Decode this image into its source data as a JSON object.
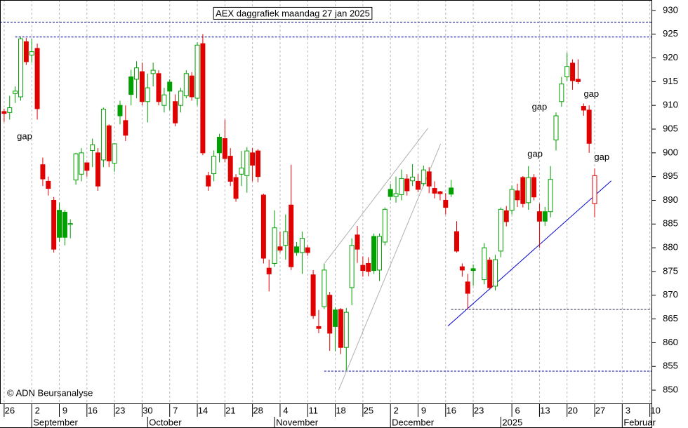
{
  "chart_data": {
    "type": "candlestick",
    "title": "AEX daggrafiek maandag 27 jan 2025",
    "copyright": "© ADN Beursanalyse",
    "up_color": "#00a000",
    "down_color": "#e00000",
    "grid": "x",
    "ylim": [
      847.2,
      932.2
    ],
    "yticks": [
      850,
      855,
      860,
      865,
      870,
      875,
      880,
      885,
      890,
      895,
      900,
      905,
      910,
      915,
      920,
      925,
      930
    ],
    "xlim": [
      -0.75,
      117.3
    ],
    "xticks": [
      {
        "value": 0,
        "label": "26"
      },
      {
        "value": 5,
        "label": "2"
      },
      {
        "value": 10,
        "label": "9"
      },
      {
        "value": 15,
        "label": "16"
      },
      {
        "value": 20,
        "label": "23"
      },
      {
        "value": 25,
        "label": "30"
      },
      {
        "value": 30,
        "label": "7"
      },
      {
        "value": 35,
        "label": "14"
      },
      {
        "value": 40,
        "label": "21"
      },
      {
        "value": 45,
        "label": "28"
      },
      {
        "value": 50,
        "label": "4"
      },
      {
        "value": 55,
        "label": "11"
      },
      {
        "value": 60,
        "label": "18"
      },
      {
        "value": 65,
        "label": "25"
      },
      {
        "value": 70,
        "label": "2"
      },
      {
        "value": 75,
        "label": "9"
      },
      {
        "value": 80,
        "label": "16"
      },
      {
        "value": 85,
        "label": "23"
      },
      {
        "value": 92,
        "label": "6"
      },
      {
        "value": 97,
        "label": "13"
      },
      {
        "value": 102,
        "label": "20"
      },
      {
        "value": 107,
        "label": "27"
      },
      {
        "value": 112,
        "label": "3"
      },
      {
        "value": 117,
        "label": "10"
      }
    ],
    "month_ticks": [
      {
        "value": 5,
        "label": "September"
      },
      {
        "value": 26,
        "label": "October"
      },
      {
        "value": 49,
        "label": "November"
      },
      {
        "value": 70,
        "label": "December"
      },
      {
        "value": 90,
        "label": "2025"
      },
      {
        "value": 112,
        "label": "Februar"
      }
    ],
    "x": [
      0,
      1,
      2,
      3,
      4,
      5,
      6,
      7,
      8,
      9,
      10,
      11,
      12,
      13,
      14,
      15,
      16,
      17,
      18,
      19,
      20,
      21,
      22,
      23,
      24,
      25,
      26,
      27,
      28,
      29,
      30,
      31,
      32,
      33,
      34,
      35,
      36,
      37,
      38,
      39,
      40,
      41,
      42,
      43,
      44,
      45,
      46,
      47,
      48,
      49,
      50,
      51,
      52,
      53,
      54,
      55,
      56,
      57,
      58,
      59,
      60,
      61,
      62,
      63,
      64,
      65,
      66,
      67,
      68,
      69,
      70,
      71,
      72,
      73,
      74,
      75,
      76,
      77,
      78,
      79,
      80,
      81,
      82,
      83,
      84,
      85,
      87,
      88,
      89,
      90,
      91,
      92,
      93,
      94,
      95,
      96,
      97,
      98,
      99,
      100,
      101,
      102,
      103,
      104,
      105,
      106,
      107
    ],
    "open": [
      908.7,
      908.5,
      912.5,
      911.8,
      923.4,
      920.6,
      922,
      897.5,
      894,
      890,
      887.9,
      887.5,
      884.9,
      894.3,
      895.5,
      897.9,
      900.5,
      900,
      898.5,
      905.7,
      897.8,
      910,
      906.8,
      916,
      915.5,
      917.1,
      910.8,
      916.7,
      916.7,
      910,
      914.9,
      910.8,
      910,
      912,
      916.2,
      911.5,
      923,
      895.2,
      895.6,
      903.3,
      903,
      899.3,
      894.8,
      895.5,
      895.2,
      900,
      900.4,
      891.1,
      875.7,
      876.7,
      880.2,
      880.5,
      889,
      880.2,
      879,
      880,
      874.3,
      863.4,
      867.6,
      870,
      866.9,
      867,
      859,
      871.6,
      882.7,
      876.3,
      876.7,
      882.4,
      875.3,
      881.2,
      892.3,
      890.8,
      891.2,
      894.5,
      894.1,
      894,
      893.5,
      896,
      892.5,
      891.8,
      890,
      892.6,
      883.4,
      876,
      872.8,
      875.6,
      873.3,
      877.4,
      871.9,
      879.3,
      887.8,
      887.9,
      892,
      894.8,
      889.5,
      894.8,
      887.6,
      887.6,
      887.6,
      902.7,
      910.8,
      916,
      918.9,
      915.5,
      909.8,
      909,
      889.3
    ],
    "high": [
      909.3,
      912,
      914,
      924.5,
      924.2,
      924,
      923,
      899,
      895,
      890.7,
      889.5,
      888,
      886,
      900,
      901,
      898,
      903,
      901,
      909.5,
      906,
      902,
      911,
      910,
      917.5,
      919.3,
      919,
      916.7,
      919,
      917.4,
      913.7,
      915.5,
      912.3,
      913.7,
      917.4,
      917,
      923.3,
      925,
      896,
      900.5,
      904,
      907,
      901,
      895.5,
      900.4,
      901.2,
      901,
      900.8,
      891.4,
      877.5,
      887.9,
      883.4,
      887,
      897.5,
      881.2,
      883.4,
      880.5,
      875.3,
      866.9,
      876.7,
      870.7,
      867.5,
      867.3,
      867.3,
      882,
      884.6,
      878.2,
      878,
      883,
      883,
      888.5,
      893.5,
      895,
      896.5,
      895.5,
      897.6,
      895.5,
      897.3,
      897,
      894,
      892,
      891.5,
      894.3,
      885.6,
      876.7,
      874.5,
      876.5,
      881,
      878,
      878.5,
      888.5,
      888.8,
      893.1,
      893.5,
      895.1,
      897.2,
      895.5,
      889.3,
      888.6,
      897.2,
      908.5,
      916,
      921.1,
      919.7,
      919.7,
      910.4,
      910,
      896.7
    ],
    "low": [
      906.5,
      907,
      910.5,
      911,
      918.5,
      919,
      907,
      893,
      891,
      879,
      881.2,
      880.5,
      882,
      893.3,
      894,
      895,
      897,
      892,
      897,
      897,
      896,
      906,
      902.5,
      910,
      911.5,
      910,
      906.4,
      914,
      910,
      908.5,
      909,
      905.6,
      908.5,
      911.5,
      911,
      910,
      899.5,
      892,
      894,
      898,
      898,
      893,
      889.7,
      893,
      891.6,
      894,
      893.8,
      876.7,
      870.8,
      876,
      879,
      877.5,
      875.3,
      878.3,
      874.5,
      878.3,
      865,
      862,
      867.1,
      858.3,
      858.2,
      857.6,
      854.1,
      867.9,
      876.8,
      873.9,
      874,
      874.5,
      873,
      880.5,
      890,
      889.5,
      890,
      891,
      893,
      891.7,
      893,
      891.5,
      890.4,
      890,
      887,
      890.7,
      879,
      873.9,
      867,
      872,
      872.3,
      871.2,
      871,
      878,
      884.5,
      887,
      888.6,
      888.5,
      888,
      890,
      880,
      884.6,
      886.4,
      900.5,
      909.7,
      915.2,
      913.3,
      914.5,
      907.8,
      900,
      886.4
    ],
    "close": [
      908.3,
      909.5,
      913,
      924,
      919.2,
      921.3,
      909.3,
      894.5,
      892.5,
      879.7,
      882.2,
      882.2,
      885.1,
      899.8,
      900,
      896.3,
      901.7,
      893,
      909.2,
      898.3,
      901.9,
      907.8,
      903.7,
      912.3,
      917.9,
      910.8,
      913.7,
      917.4,
      910.8,
      912.2,
      913,
      906.3,
      913,
      916.7,
      911.8,
      922.7,
      900,
      893,
      899.3,
      900,
      898.8,
      894,
      890.4,
      896.8,
      900.4,
      897.4,
      895,
      877.8,
      874.5,
      884.2,
      879.5,
      883.4,
      876,
      879,
      882,
      879,
      865.7,
      863,
      875.3,
      862,
      863.4,
      859,
      866.4,
      880.5,
      879.7,
      875.2,
      875,
      875.2,
      882.4,
      888.1,
      890.8,
      891.4,
      894.6,
      892,
      894.9,
      892.3,
      896.4,
      893,
      891.5,
      891.4,
      888.5,
      891.3,
      879.3,
      875.3,
      870.4,
      875.2,
      880,
      871.6,
      877.5,
      888.1,
      885.5,
      892.3,
      890.1,
      889.3,
      894.8,
      890.7,
      885.6,
      885.6,
      894.4,
      907.8,
      914.5,
      918.2,
      915.2,
      915,
      909,
      902,
      895.2
    ],
    "hlines": [
      {
        "y": 927.5,
        "from": -0.75,
        "color": "#000080"
      },
      {
        "y": 924.4,
        "from": 2,
        "color": "#0000a0"
      },
      {
        "y": 867,
        "from": 81,
        "color": "#202040"
      },
      {
        "y": 854,
        "from": 58,
        "color": "#0000a0"
      }
    ],
    "trendlines": [
      {
        "x": [
          80.4,
          110
        ],
        "y": [
          863.5,
          894.1
        ],
        "color": "#0000cc"
      },
      {
        "x": [
          58.1,
          76.8
        ],
        "y": [
          876.8,
          905.2
        ],
        "color": "#b0b0b0"
      },
      {
        "x": [
          60.6,
          79.1
        ],
        "y": [
          850,
          901.9
        ],
        "color": "#b0b0b0"
      }
    ],
    "annotations": [
      {
        "text": "gap",
        "x": 3.7,
        "y": 903.4,
        "color": "#a0a0a0"
      },
      {
        "text": "gap",
        "x": 97,
        "y": 909.6,
        "color": "#000000"
      },
      {
        "text": "gap",
        "x": 96.2,
        "y": 899.7,
        "color": "#000000"
      },
      {
        "text": "gap",
        "x": 106.4,
        "y": 912.3,
        "color": "#000000"
      },
      {
        "text": "gap",
        "x": 108.3,
        "y": 899,
        "color": "#000000"
      }
    ]
  }
}
